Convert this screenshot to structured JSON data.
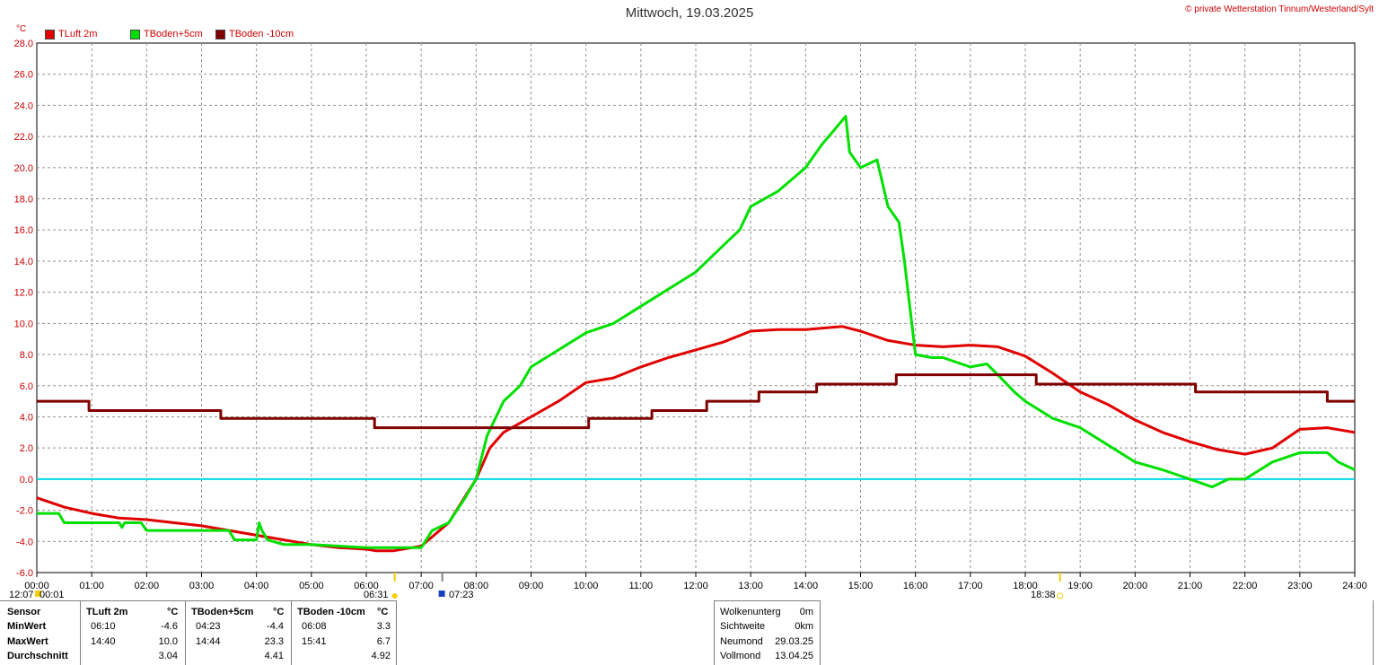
{
  "title": "Mittwoch, 19.03.2025",
  "copyright": "© private Wetterstation Tinnum/Westerland/Sylt",
  "unit": "°C",
  "legend": [
    {
      "label": "TLuft 2m",
      "color": "#e00000"
    },
    {
      "label": "TBoden+5cm",
      "color": "#00e000"
    },
    {
      "label": "TBoden -10cm",
      "color": "#800000"
    }
  ],
  "chart_data": {
    "type": "line",
    "title": "Mittwoch, 19.03.2025",
    "ylabel": "°C",
    "xlim": [
      0,
      24
    ],
    "ylim": [
      -6,
      28
    ],
    "grid": true,
    "legend_position": "top-left",
    "y_ticks": [
      "-6.0",
      "-4.0",
      "-2.0",
      "0.0",
      "2.0",
      "4.0",
      "6.0",
      "8.0",
      "10.0",
      "12.0",
      "14.0",
      "16.0",
      "18.0",
      "20.0",
      "22.0",
      "24.0",
      "26.0",
      "28.0"
    ],
    "x_ticks": [
      "00:00",
      "01:00",
      "02:00",
      "03:00",
      "04:00",
      "05:00",
      "06:00",
      "07:00",
      "08:00",
      "09:00",
      "10:00",
      "11:00",
      "12:00",
      "13:00",
      "14:00",
      "15:00",
      "16:00",
      "17:00",
      "18:00",
      "19:00",
      "20:00",
      "21:00",
      "22:00",
      "23:00",
      "24:00"
    ],
    "zero_line": 0,
    "series": [
      {
        "name": "TLuft 2m",
        "color": "#e00000",
        "x": [
          0,
          0.5,
          1,
          1.5,
          2,
          2.5,
          3,
          3.5,
          4,
          4.5,
          5,
          5.5,
          6,
          6.17,
          6.5,
          7,
          7.5,
          8,
          8.25,
          8.5,
          9,
          9.5,
          10,
          10.5,
          11,
          11.5,
          12,
          12.5,
          13,
          13.5,
          14,
          14.67,
          15,
          15.5,
          16,
          16.5,
          17,
          17.5,
          18,
          18.5,
          19,
          19.5,
          20,
          20.5,
          21,
          21.5,
          22,
          22.5,
          23,
          23.5,
          24
        ],
        "y": [
          -1.2,
          -1.8,
          -2.2,
          -2.5,
          -2.6,
          -2.8,
          -3.0,
          -3.3,
          -3.6,
          -3.9,
          -4.2,
          -4.4,
          -4.5,
          -4.6,
          -4.6,
          -4.3,
          -2.8,
          0.0,
          2.0,
          3.0,
          4.0,
          5.0,
          6.2,
          6.5,
          7.2,
          7.8,
          8.3,
          8.8,
          9.5,
          9.6,
          9.6,
          9.8,
          9.5,
          8.9,
          8.6,
          8.5,
          8.6,
          8.5,
          7.9,
          6.8,
          5.6,
          4.8,
          3.8,
          3.0,
          2.4,
          1.9,
          1.6,
          2.0,
          3.2,
          3.3,
          3.0
        ]
      },
      {
        "name": "TBoden+5cm",
        "color": "#00e000",
        "x": [
          0,
          0.4,
          0.5,
          1.5,
          1.55,
          1.6,
          1.9,
          2.0,
          3.0,
          3.5,
          3.6,
          4.0,
          4.05,
          4.1,
          4.2,
          4.3,
          4.5,
          5.0,
          5.5,
          6.0,
          6.4,
          7.0,
          7.2,
          7.5,
          7.8,
          8.0,
          8.2,
          8.5,
          8.8,
          9.0,
          9.5,
          10.0,
          10.5,
          11.0,
          11.5,
          12.0,
          12.5,
          12.8,
          13.0,
          13.5,
          14.0,
          14.3,
          14.73,
          14.8,
          15.0,
          15.3,
          15.5,
          15.7,
          15.8,
          16.0,
          16.3,
          16.5,
          17.0,
          17.3,
          17.5,
          17.8,
          18.0,
          18.5,
          19.0,
          19.5,
          20.0,
          20.5,
          21.0,
          21.4,
          21.7,
          22.0,
          22.5,
          23.0,
          23.5,
          23.7,
          24
        ],
        "y": [
          -2.2,
          -2.2,
          -2.8,
          -2.8,
          -3.1,
          -2.8,
          -2.8,
          -3.3,
          -3.3,
          -3.3,
          -3.9,
          -3.9,
          -2.8,
          -3.3,
          -3.9,
          -4.0,
          -4.2,
          -4.2,
          -4.3,
          -4.4,
          -4.4,
          -4.4,
          -3.3,
          -2.8,
          -1.2,
          0.0,
          2.8,
          5.0,
          6.0,
          7.2,
          8.3,
          9.4,
          10.0,
          11.1,
          12.2,
          13.3,
          15.0,
          16.0,
          17.5,
          18.5,
          20.0,
          21.5,
          23.3,
          21.0,
          20.0,
          20.5,
          17.5,
          16.5,
          14.0,
          8.0,
          7.8,
          7.8,
          7.2,
          7.4,
          6.7,
          5.6,
          5.0,
          3.9,
          3.3,
          2.2,
          1.1,
          0.6,
          0.0,
          -0.5,
          0.0,
          0.0,
          1.1,
          1.7,
          1.7,
          1.1,
          0.6
        ]
      },
      {
        "name": "TBoden -10cm",
        "color": "#800000",
        "x": [
          0,
          0.95,
          0.95,
          3.35,
          3.35,
          6.15,
          6.15,
          10.05,
          10.05,
          11.2,
          11.2,
          12.2,
          12.2,
          13.15,
          13.15,
          14.2,
          14.2,
          15.65,
          15.65,
          18.2,
          18.2,
          21.1,
          21.1,
          23.5,
          23.5,
          24
        ],
        "y": [
          5.0,
          5.0,
          4.4,
          4.4,
          3.9,
          3.9,
          3.3,
          3.3,
          3.9,
          3.9,
          4.4,
          4.4,
          5.0,
          5.0,
          5.6,
          5.6,
          6.1,
          6.1,
          6.7,
          6.7,
          6.1,
          6.1,
          5.6,
          5.6,
          5.0,
          5.0
        ]
      }
    ]
  },
  "markers": {
    "bottom_left": "12:07",
    "bottom_left2": "00:01",
    "sunrise": "06:31",
    "moonset": "07:23",
    "sunset": "18:38"
  },
  "stats": {
    "headers": {
      "sensor": "Sensor",
      "c1": "TLuft 2m",
      "u1": "°C",
      "c2": "TBoden+5cm",
      "u2": "°C",
      "c3": "TBoden -10cm",
      "u3": "°C"
    },
    "rows": [
      {
        "label": "MinWert",
        "t1": "06:10",
        "v1": "-4.6",
        "t2": "04:23",
        "v2": "-4.4",
        "t3": "06:08",
        "v3": "3.3"
      },
      {
        "label": "MaxWert",
        "t1": "14:40",
        "v1": "10.0",
        "t2": "14:44",
        "v2": "23.3",
        "t3": "15:41",
        "v3": "6.7"
      },
      {
        "label": "Durchschnitt",
        "t1": "",
        "v1": "3.04",
        "t2": "",
        "v2": "4.41",
        "t3": "",
        "v3": "4.92"
      }
    ]
  },
  "info": [
    {
      "label": "Wolkenunterg",
      "value": "0m"
    },
    {
      "label": "Sichtweite",
      "value": "0km"
    },
    {
      "label": "Neumond",
      "value": "29.03.25"
    },
    {
      "label": "Vollmond",
      "value": "13.04.25"
    }
  ]
}
